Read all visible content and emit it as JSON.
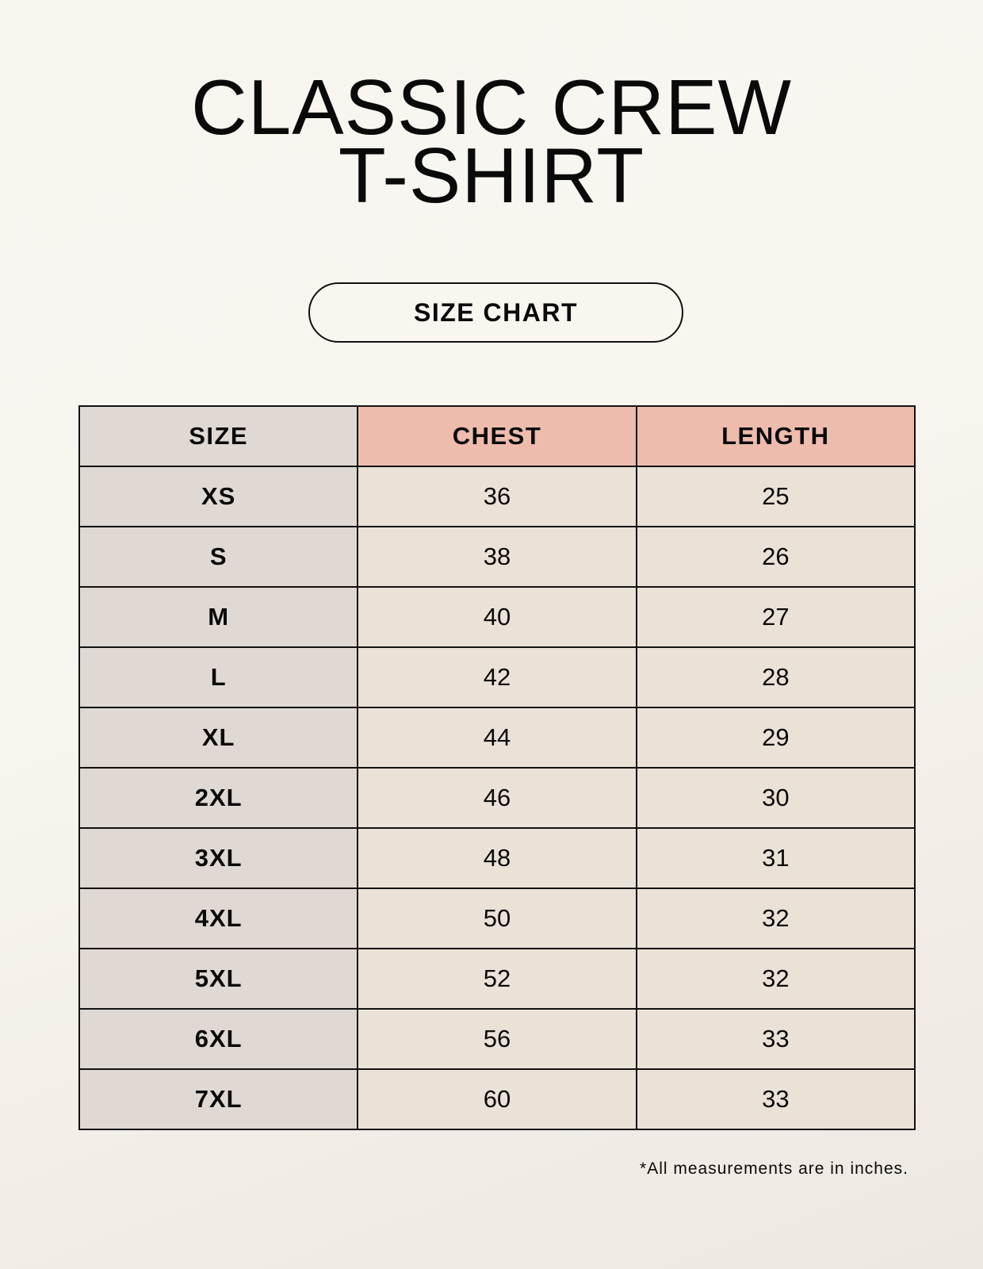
{
  "title": {
    "line1": "CLASSIC CREW",
    "line2": "T-SHIRT"
  },
  "badge": "SIZE CHART",
  "table": {
    "headers": [
      "SIZE",
      "CHEST",
      "LENGTH"
    ],
    "rows": [
      [
        "XS",
        "36",
        "25"
      ],
      [
        "S",
        "38",
        "26"
      ],
      [
        "M",
        "40",
        "27"
      ],
      [
        "L",
        "42",
        "28"
      ],
      [
        "XL",
        "44",
        "29"
      ],
      [
        "2XL",
        "46",
        "30"
      ],
      [
        "3XL",
        "48",
        "31"
      ],
      [
        "4XL",
        "50",
        "32"
      ],
      [
        "5XL",
        "52",
        "32"
      ],
      [
        "6XL",
        "56",
        "33"
      ],
      [
        "7XL",
        "60",
        "33"
      ]
    ]
  },
  "footnote": "*All measurements are in inches.",
  "colors": {
    "header_accent": "#edbcad",
    "size_column": "#e0d8d2",
    "value_cells": "#ebe2d7"
  }
}
